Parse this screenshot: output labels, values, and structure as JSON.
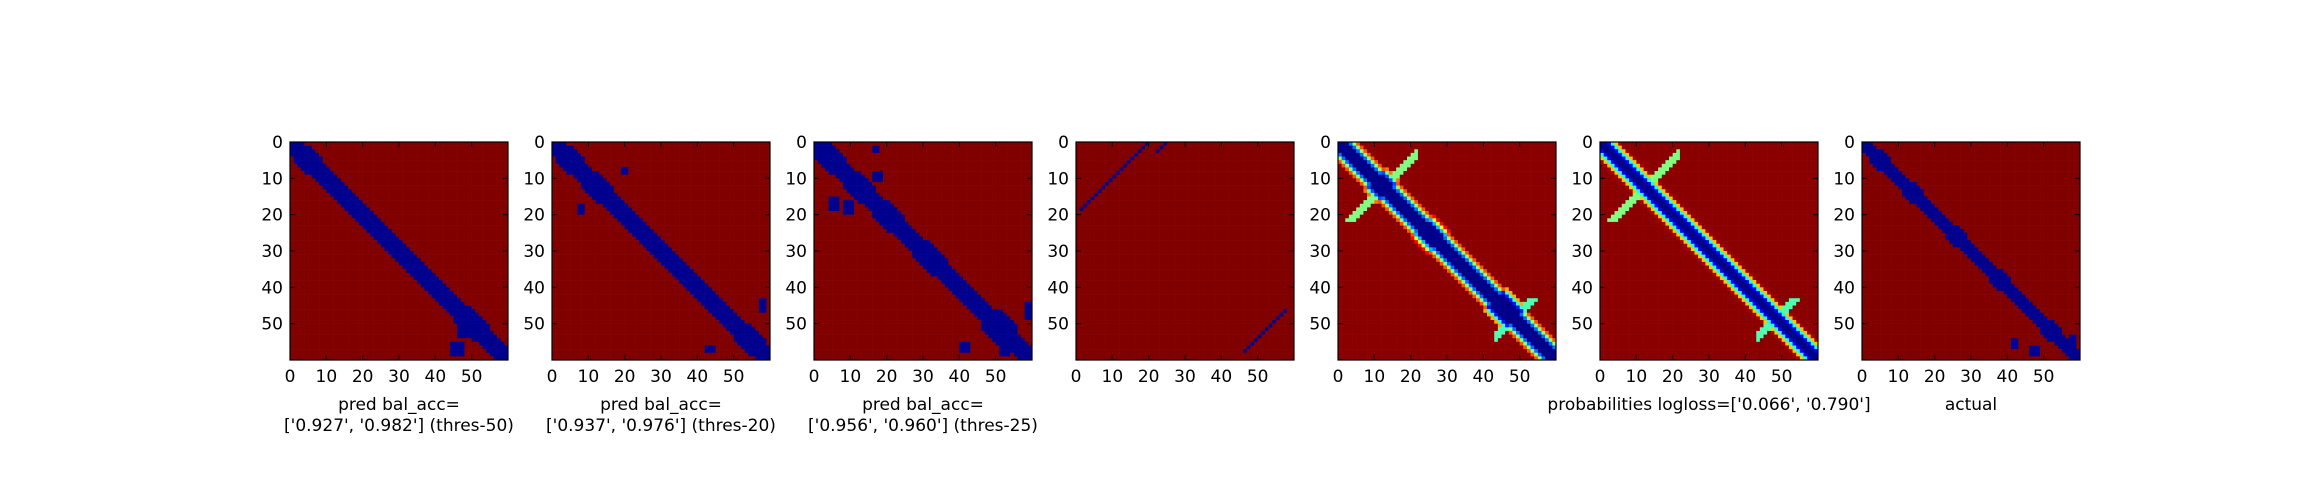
{
  "colors": {
    "background_class": "#800000",
    "contact_class": "#00008f",
    "axes_frame": "#000000",
    "colormap": "jet"
  },
  "chart_data": [
    {
      "type": "heatmap",
      "size": 60,
      "xticks": [
        0,
        10,
        20,
        30,
        40,
        50
      ],
      "yticks": [
        0,
        10,
        20,
        30,
        40,
        50
      ],
      "caption": [
        "pred bal_acc=",
        "['0.927', '0.982'] (thres-50)"
      ],
      "band_width": 3.2,
      "blocks": [
        [
          3,
          6,
          2.2
        ],
        [
          11,
          14,
          2
        ],
        [
          30,
          33,
          1.8
        ],
        [
          36,
          39,
          2
        ],
        [
          47,
          52,
          2.5
        ]
      ],
      "offdiag": [
        [
          55,
          58,
          47,
          44
        ],
        [
          50,
          53,
          49,
          46
        ]
      ],
      "value_range": [
        0,
        1
      ]
    },
    {
      "type": "heatmap",
      "size": 60,
      "xticks": [
        0,
        10,
        20,
        30,
        40,
        50
      ],
      "yticks": [
        0,
        10,
        20,
        30,
        40,
        50
      ],
      "caption": [
        "pred bal_acc=",
        "['0.937', '0.976'] (thres-20)"
      ],
      "band_width": 3.2,
      "blocks": [
        [
          3,
          6,
          2.2
        ],
        [
          10,
          14,
          2.2
        ],
        [
          24,
          27,
          1.8
        ],
        [
          45,
          48,
          1.8
        ],
        [
          52,
          56,
          2.5
        ]
      ],
      "offdiag": [
        [
          7,
          8,
          19,
          20
        ],
        [
          17,
          19,
          7,
          8
        ],
        [
          43,
          46,
          57,
          58
        ],
        [
          56,
          57,
          42,
          44
        ]
      ],
      "value_range": [
        0,
        1
      ]
    },
    {
      "type": "heatmap",
      "size": 60,
      "xticks": [
        0,
        10,
        20,
        30,
        40,
        50
      ],
      "yticks": [
        0,
        10,
        20,
        30,
        40,
        50
      ],
      "caption": [
        "pred bal_acc=",
        "['0.956', '0.960'] (thres-25)"
      ],
      "band_width": 3.6,
      "blocks": [
        [
          2,
          6,
          2.6
        ],
        [
          10,
          14,
          2.5
        ],
        [
          18,
          22,
          2.2
        ],
        [
          29,
          34,
          2
        ],
        [
          48,
          53,
          3.2
        ]
      ],
      "offdiag": [
        [
          1,
          2,
          16,
          17
        ],
        [
          8,
          10,
          16,
          18
        ],
        [
          15,
          18,
          4,
          6
        ],
        [
          16,
          19,
          8,
          10
        ],
        [
          55,
          57,
          40,
          42
        ],
        [
          56,
          58,
          51,
          53
        ],
        [
          44,
          48,
          58,
          59
        ]
      ],
      "value_range": [
        0,
        1
      ]
    },
    {
      "type": "heatmap",
      "size": 60,
      "xticks": [
        0,
        10,
        20,
        30,
        40,
        50
      ],
      "yticks": [
        0,
        10,
        20,
        30,
        40,
        50
      ],
      "caption": [],
      "band_width": 0,
      "blocks": [],
      "lines": [
        [
          2,
          22,
          5,
          0.7
        ],
        [
          18,
          1,
          23,
          0.7
        ],
        [
          57,
          46,
          12,
          0.7
        ]
      ],
      "value_range": [
        0,
        1
      ]
    },
    {
      "type": "heatmap",
      "size": 60,
      "xticks": [
        0,
        10,
        20,
        30,
        40,
        50
      ],
      "yticks": [
        0,
        10,
        20,
        30,
        40,
        50
      ],
      "caption": [],
      "continuous": true,
      "band_width": 2.2,
      "blocks": [
        [
          10,
          13,
          2
        ],
        [
          23,
          27,
          1.6
        ],
        [
          43,
          48,
          2.2
        ]
      ],
      "offdiag": [],
      "value_range": [
        0,
        1
      ]
    },
    {
      "type": "heatmap",
      "size": 60,
      "xticks": [
        0,
        10,
        20,
        30,
        40,
        50
      ],
      "yticks": [
        0,
        10,
        20,
        30,
        40,
        50
      ],
      "caption": [
        "probabilities logloss=['0.066', '0.790']"
      ],
      "continuous": true,
      "band_width": 1.6,
      "blocks": [],
      "offdiag": [],
      "value_range": [
        0,
        1
      ]
    },
    {
      "type": "heatmap",
      "size": 60,
      "xticks": [
        0,
        10,
        20,
        30,
        40,
        50
      ],
      "yticks": [
        0,
        10,
        20,
        30,
        40,
        50
      ],
      "caption": [
        "actual"
      ],
      "band_width": 2.8,
      "blocks": [
        [
          3,
          6,
          2
        ],
        [
          12,
          15,
          2
        ],
        [
          24,
          27,
          1.6
        ],
        [
          36,
          39,
          1.8
        ],
        [
          50,
          53,
          2
        ]
      ],
      "offdiag": [
        [
          56,
          58,
          48,
          46
        ],
        [
          53,
          55,
          57,
          58
        ],
        [
          54,
          56,
          41,
          42
        ]
      ],
      "value_range": [
        0,
        1
      ]
    }
  ]
}
